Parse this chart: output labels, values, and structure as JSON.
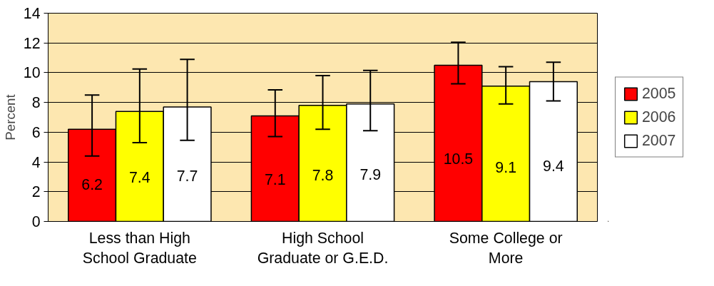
{
  "chart_data": {
    "type": "bar",
    "ylabel": "Percent",
    "categories": [
      "Less than High School Graduate",
      "High School Graduate or G.E.D.",
      "Some College or More"
    ],
    "series": [
      {
        "name": "2005",
        "color": "#ff0000",
        "values": [
          6.2,
          7.1,
          10.5
        ],
        "errors": [
          [
            4.4,
            8.5
          ],
          [
            5.7,
            8.85
          ],
          [
            9.25,
            12.05
          ]
        ]
      },
      {
        "name": "2006",
        "color": "#ffff00",
        "values": [
          7.4,
          7.8,
          9.1
        ],
        "errors": [
          [
            5.3,
            10.25
          ],
          [
            6.2,
            9.8
          ],
          [
            7.9,
            10.4
          ]
        ]
      },
      {
        "name": "2007",
        "color": "#ffffff",
        "values": [
          7.7,
          7.9,
          9.4
        ],
        "errors": [
          [
            5.45,
            10.9
          ],
          [
            6.1,
            10.15
          ],
          [
            8.1,
            10.7
          ]
        ]
      }
    ],
    "ylim": [
      0,
      14
    ],
    "yticks": [
      0,
      2,
      4,
      6,
      8,
      10,
      12,
      14
    ],
    "grid": "y",
    "legend": "right",
    "data_labels": true
  }
}
